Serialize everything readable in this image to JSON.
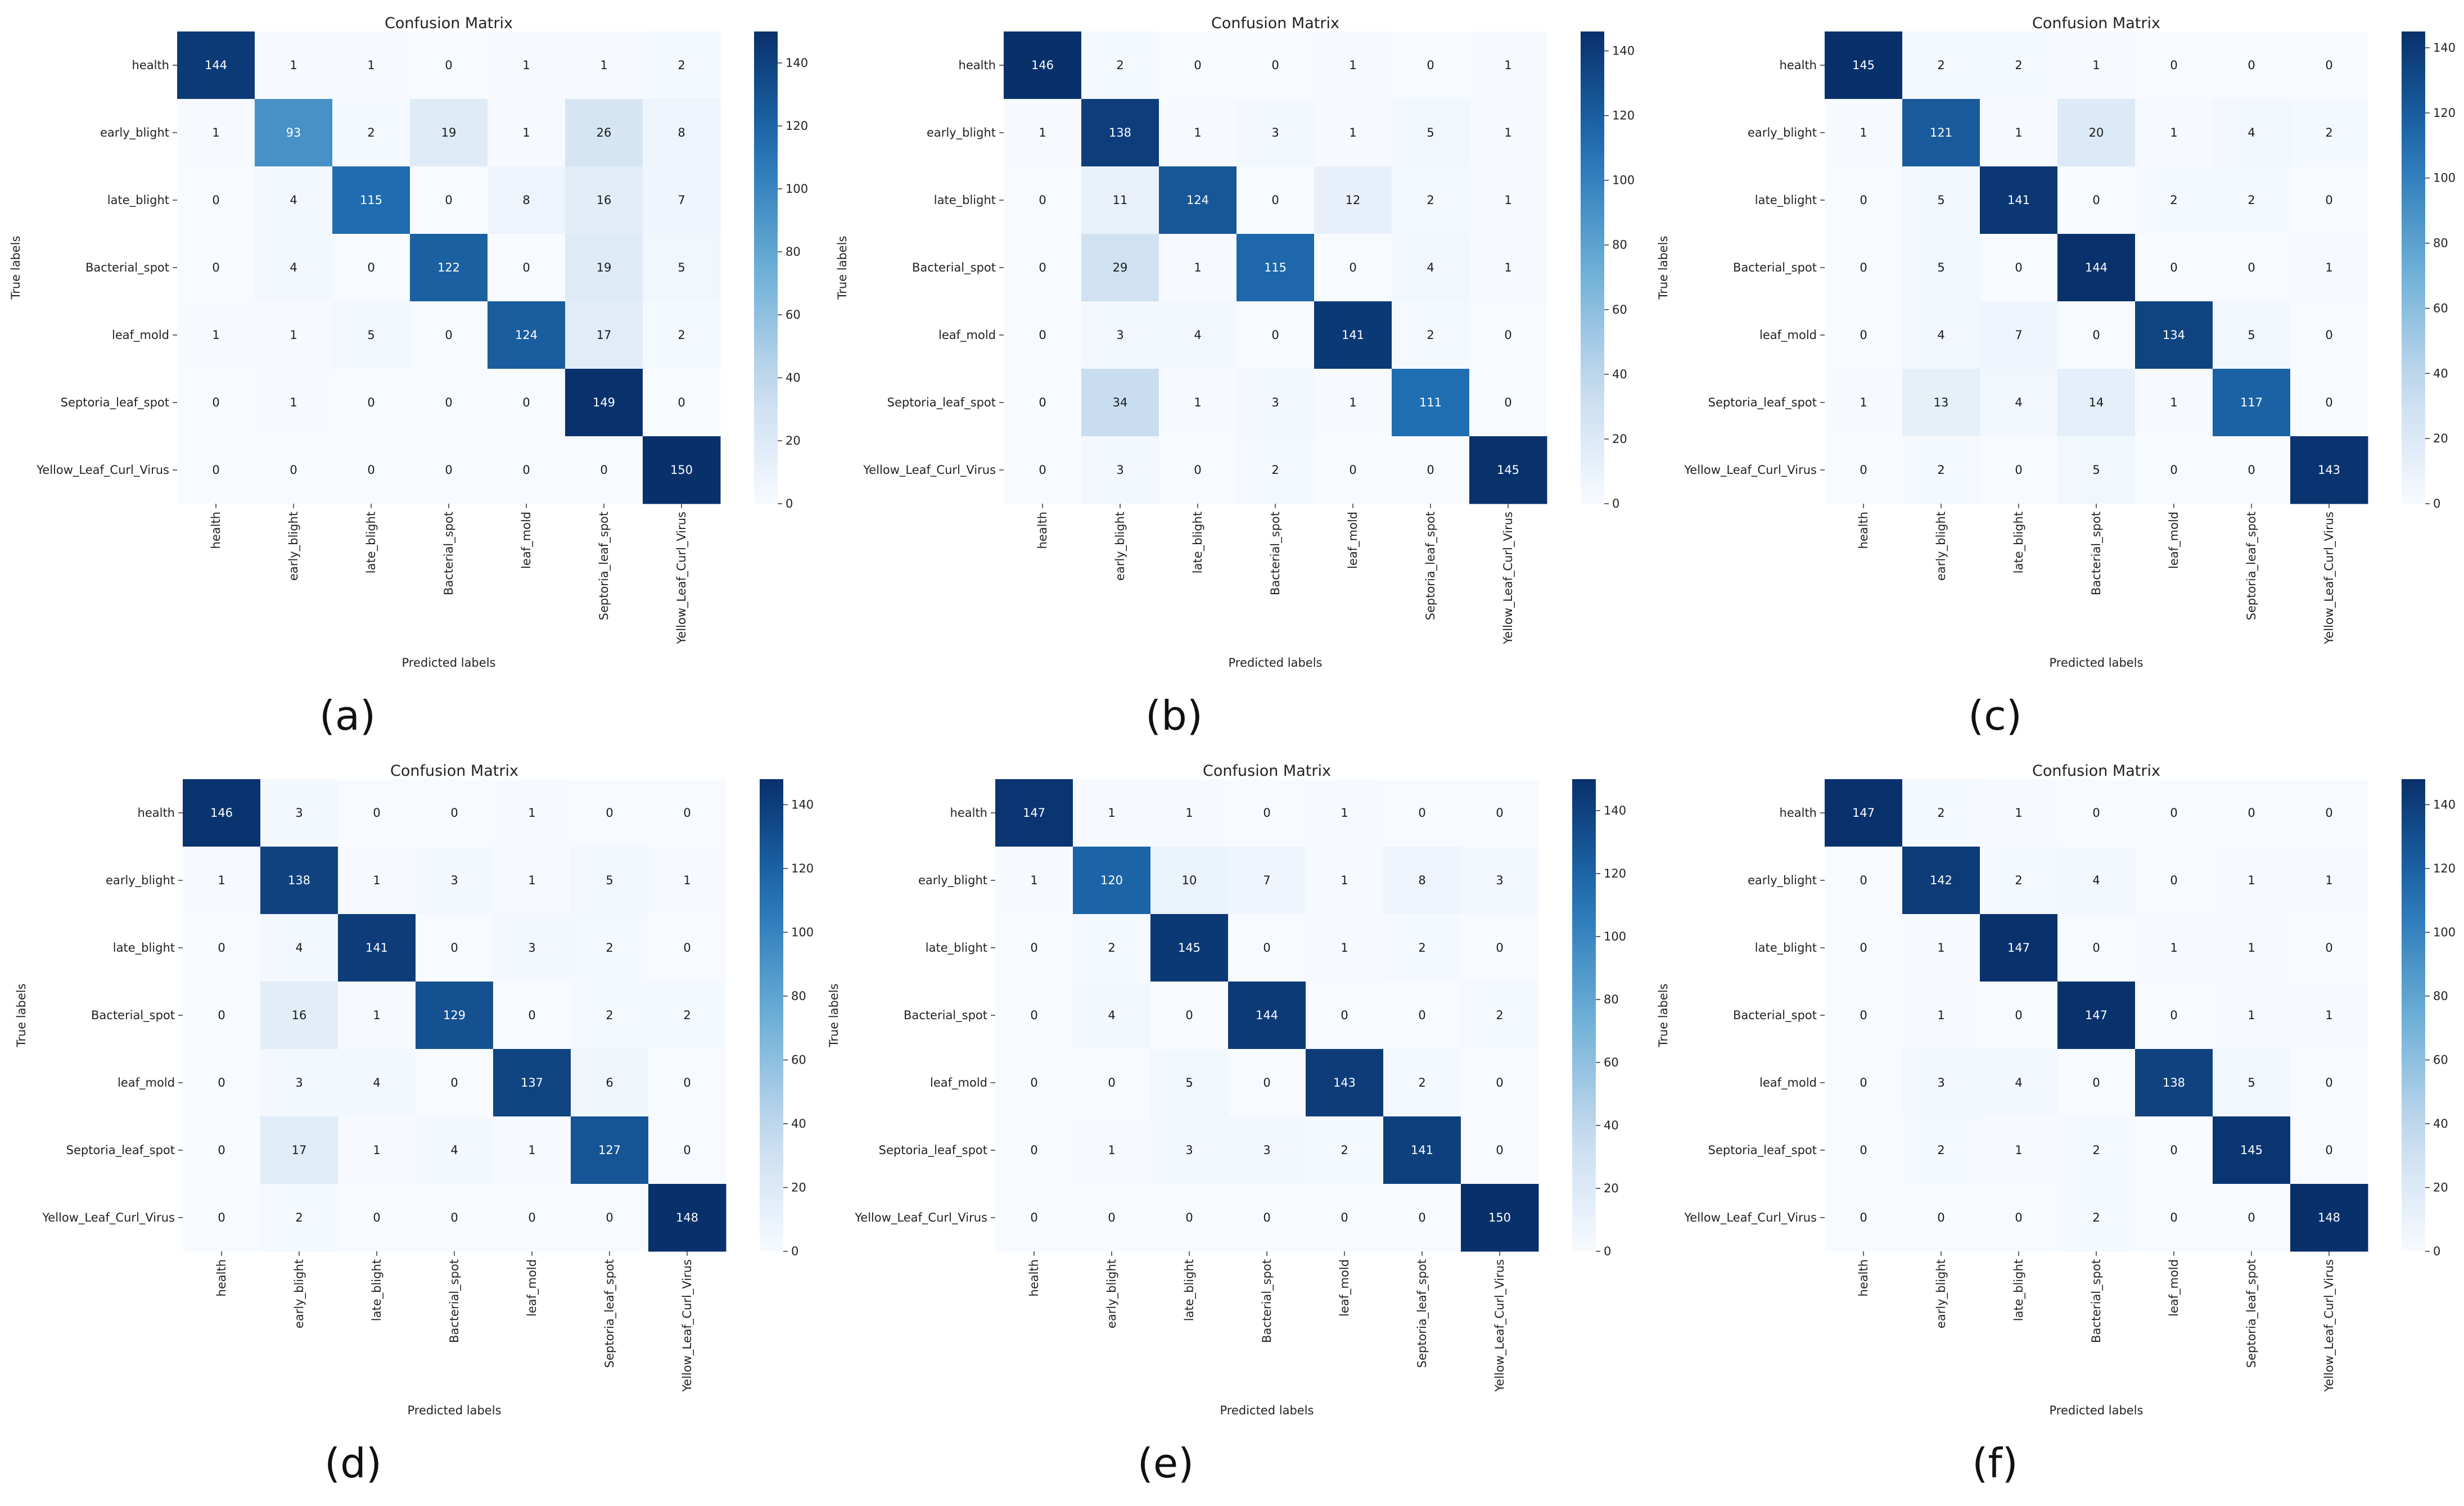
{
  "figure": {
    "panels": [
      "(a)",
      "(b)",
      "(c)",
      "(d)",
      "(e)",
      "(f)"
    ]
  },
  "chart_data": [
    {
      "panel": "(a)",
      "type": "heatmap",
      "title": "Confusion Matrix",
      "xlabel": "Predicted labels",
      "ylabel": "True labels",
      "labels": [
        "health",
        "early_blight",
        "late_blight",
        "Bacterial_spot",
        "leaf_mold",
        "Septoria_leaf_spot",
        "Yellow_Leaf_Curl_Virus"
      ],
      "matrix": [
        [
          144,
          1,
          1,
          0,
          1,
          1,
          2
        ],
        [
          1,
          93,
          2,
          19,
          1,
          26,
          8
        ],
        [
          0,
          4,
          115,
          0,
          8,
          16,
          7
        ],
        [
          0,
          4,
          0,
          122,
          0,
          19,
          5
        ],
        [
          1,
          1,
          5,
          0,
          124,
          17,
          2
        ],
        [
          0,
          1,
          0,
          0,
          0,
          149,
          0
        ],
        [
          0,
          0,
          0,
          0,
          0,
          0,
          150
        ]
      ],
      "colorbar_ticks": [
        0,
        20,
        40,
        60,
        80,
        100,
        120,
        140
      ],
      "vmin": 0,
      "vmax": 150,
      "colormap": {
        "low": "#f7fbff",
        "high": "#08306b"
      }
    },
    {
      "panel": "(b)",
      "type": "heatmap",
      "title": "Confusion Matrix",
      "xlabel": "Predicted labels",
      "ylabel": "True labels",
      "labels": [
        "health",
        "early_blight",
        "late_blight",
        "Bacterial_spot",
        "leaf_mold",
        "Septoria_leaf_spot",
        "Yellow_Leaf_Curl_Virus"
      ],
      "matrix": [
        [
          146,
          2,
          0,
          0,
          1,
          0,
          1
        ],
        [
          1,
          138,
          1,
          3,
          1,
          5,
          1
        ],
        [
          0,
          11,
          124,
          0,
          12,
          2,
          1
        ],
        [
          0,
          29,
          1,
          115,
          0,
          4,
          1
        ],
        [
          0,
          3,
          4,
          0,
          141,
          2,
          0
        ],
        [
          0,
          34,
          1,
          3,
          1,
          111,
          0
        ],
        [
          0,
          3,
          0,
          2,
          0,
          0,
          145
        ]
      ],
      "colorbar_ticks": [
        0,
        20,
        40,
        60,
        80,
        100,
        120,
        140
      ],
      "vmin": 0,
      "vmax": 146,
      "colormap": {
        "low": "#f7fbff",
        "high": "#08306b"
      }
    },
    {
      "panel": "(c)",
      "type": "heatmap",
      "title": "Confusion Matrix",
      "xlabel": "Predicted labels",
      "ylabel": "True labels",
      "labels": [
        "health",
        "early_blight",
        "late_blight",
        "Bacterial_spot",
        "leaf_mold",
        "Septoria_leaf_spot",
        "Yellow_Leaf_Curl_Virus"
      ],
      "matrix": [
        [
          145,
          2,
          2,
          1,
          0,
          0,
          0
        ],
        [
          1,
          121,
          1,
          20,
          1,
          4,
          2
        ],
        [
          0,
          5,
          141,
          0,
          2,
          2,
          0
        ],
        [
          0,
          5,
          0,
          144,
          0,
          0,
          1
        ],
        [
          0,
          4,
          7,
          0,
          134,
          5,
          0
        ],
        [
          1,
          13,
          4,
          14,
          1,
          117,
          0
        ],
        [
          0,
          2,
          0,
          5,
          0,
          0,
          143
        ]
      ],
      "colorbar_ticks": [
        0,
        20,
        40,
        60,
        80,
        100,
        120,
        140
      ],
      "vmin": 0,
      "vmax": 145,
      "colormap": {
        "low": "#f7fbff",
        "high": "#08306b"
      }
    },
    {
      "panel": "(d)",
      "type": "heatmap",
      "title": "Confusion Matrix",
      "xlabel": "Predicted labels",
      "ylabel": "True labels",
      "labels": [
        "health",
        "early_blight",
        "late_blight",
        "Bacterial_spot",
        "leaf_mold",
        "Septoria_leaf_spot",
        "Yellow_Leaf_Curl_Virus"
      ],
      "matrix": [
        [
          146,
          3,
          0,
          0,
          1,
          0,
          0
        ],
        [
          1,
          138,
          1,
          3,
          1,
          5,
          1
        ],
        [
          0,
          4,
          141,
          0,
          3,
          2,
          0
        ],
        [
          0,
          16,
          1,
          129,
          0,
          2,
          2
        ],
        [
          0,
          3,
          4,
          0,
          137,
          6,
          0
        ],
        [
          0,
          17,
          1,
          4,
          1,
          127,
          0
        ],
        [
          0,
          2,
          0,
          0,
          0,
          0,
          148
        ]
      ],
      "colorbar_ticks": [
        0,
        20,
        40,
        60,
        80,
        100,
        120,
        140
      ],
      "vmin": 0,
      "vmax": 148,
      "colormap": {
        "low": "#f7fbff",
        "high": "#08306b"
      }
    },
    {
      "panel": "(e)",
      "type": "heatmap",
      "title": "Confusion Matrix",
      "xlabel": "Predicted labels",
      "ylabel": "True labels",
      "labels": [
        "health",
        "early_blight",
        "late_blight",
        "Bacterial_spot",
        "leaf_mold",
        "Septoria_leaf_spot",
        "Yellow_Leaf_Curl_Virus"
      ],
      "matrix": [
        [
          147,
          1,
          1,
          0,
          1,
          0,
          0
        ],
        [
          1,
          120,
          10,
          7,
          1,
          8,
          3
        ],
        [
          0,
          2,
          145,
          0,
          1,
          2,
          0
        ],
        [
          0,
          4,
          0,
          144,
          0,
          0,
          2
        ],
        [
          0,
          0,
          5,
          0,
          143,
          2,
          0
        ],
        [
          0,
          1,
          3,
          3,
          2,
          141,
          0
        ],
        [
          0,
          0,
          0,
          0,
          0,
          0,
          150
        ]
      ],
      "colorbar_ticks": [
        0,
        20,
        40,
        60,
        80,
        100,
        120,
        140
      ],
      "vmin": 0,
      "vmax": 150,
      "colormap": {
        "low": "#f7fbff",
        "high": "#08306b"
      }
    },
    {
      "panel": "(f)",
      "type": "heatmap",
      "title": "Confusion Matrix",
      "xlabel": "Predicted labels",
      "ylabel": "True labels",
      "labels": [
        "health",
        "early_blight",
        "late_blight",
        "Bacterial_spot",
        "leaf_mold",
        "Septoria_leaf_spot",
        "Yellow_Leaf_Curl_Virus"
      ],
      "matrix": [
        [
          147,
          2,
          1,
          0,
          0,
          0,
          0
        ],
        [
          0,
          142,
          2,
          4,
          0,
          1,
          1
        ],
        [
          0,
          1,
          147,
          0,
          1,
          1,
          0
        ],
        [
          0,
          1,
          0,
          147,
          0,
          1,
          1
        ],
        [
          0,
          3,
          4,
          0,
          138,
          5,
          0
        ],
        [
          0,
          2,
          1,
          2,
          0,
          145,
          0
        ],
        [
          0,
          0,
          0,
          2,
          0,
          0,
          148
        ]
      ],
      "colorbar_ticks": [
        0,
        20,
        40,
        60,
        80,
        100,
        120,
        140
      ],
      "vmin": 0,
      "vmax": 148,
      "colormap": {
        "low": "#f7fbff",
        "high": "#08306b"
      }
    }
  ]
}
